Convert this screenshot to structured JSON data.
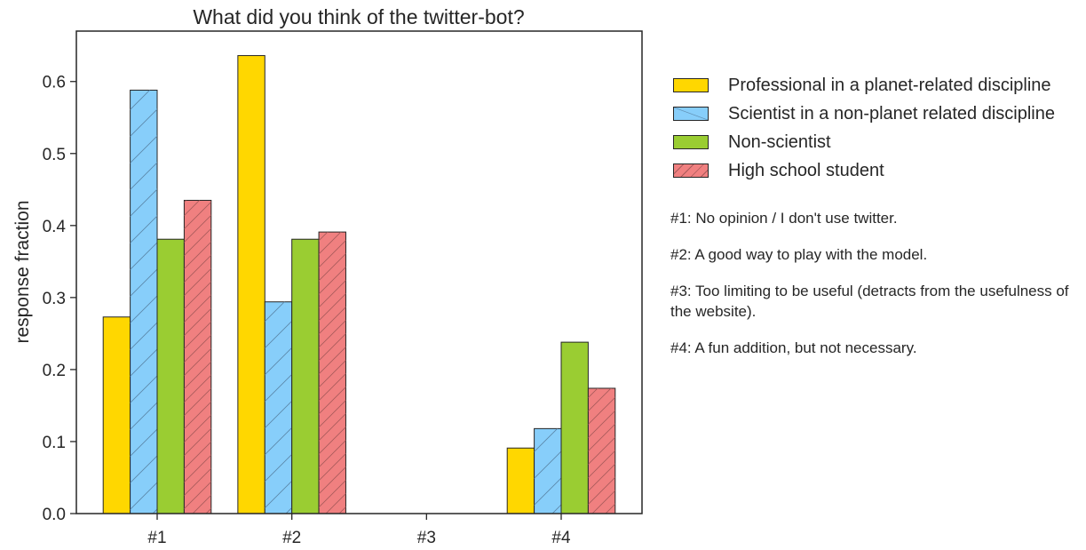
{
  "chart_data": {
    "type": "bar",
    "title": "What did you think of the twitter-bot?",
    "xlabel": "",
    "ylabel": "response fraction",
    "categories": [
      "#1",
      "#2",
      "#3",
      "#4"
    ],
    "ylim": [
      0,
      0.67
    ],
    "yticks": [
      0.0,
      0.1,
      0.2,
      0.3,
      0.4,
      0.5,
      0.6
    ],
    "ytick_labels": [
      "0.0",
      "0.1",
      "0.2",
      "0.3",
      "0.4",
      "0.5",
      "0.6"
    ],
    "grid": false,
    "legend_position": "right",
    "series": [
      {
        "name": "Professional in a planet-related discipline",
        "values": [
          0.273,
          0.636,
          0.0,
          0.091
        ],
        "color": "#FFD700",
        "hatch": "none"
      },
      {
        "name": "Scientist in a non-planet related discipline",
        "values": [
          0.588,
          0.294,
          0.0,
          0.118
        ],
        "color": "#87CEFA",
        "hatch": "single"
      },
      {
        "name": "Non-scientist",
        "values": [
          0.381,
          0.381,
          0.0,
          0.238
        ],
        "color": "#9ACD32",
        "hatch": "none"
      },
      {
        "name": "High school student",
        "values": [
          0.435,
          0.391,
          0.0,
          0.174
        ],
        "color": "#F08080",
        "hatch": "double"
      }
    ],
    "notes": [
      "#1: No opinion / I don't use twitter.",
      "#2: A good way to play with the model.",
      "#3: Too limiting to be useful (detracts from the usefulness of the website).",
      "#4: A fun addition, but not necessary."
    ]
  }
}
